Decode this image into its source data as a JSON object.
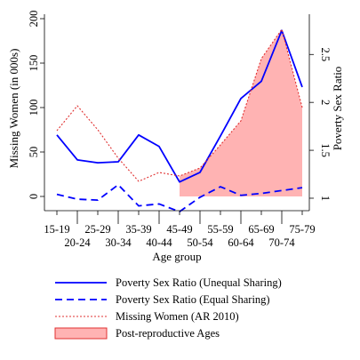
{
  "chart_data": {
    "type": "line",
    "xlabel": "Age group",
    "ylabel_left": "Missing Women (in 000s)",
    "ylabel_right": "Poverty Sex Ratio",
    "categories": [
      "15-19",
      "20-24",
      "25-29",
      "30-34",
      "35-39",
      "40-44",
      "45-49",
      "50-54",
      "55-59",
      "60-64",
      "65-69",
      "70-74",
      "75-79"
    ],
    "ylim_left": [
      -16,
      205
    ],
    "ylim_right": [
      0.87,
      2.92
    ],
    "yticks_left": [
      "0",
      "50",
      "100",
      "150",
      "200"
    ],
    "yticks_right": [
      "1",
      "1.5",
      "2",
      "2.5"
    ],
    "grid": false,
    "legend_position": "bottom",
    "shaded_region": {
      "label": "Post-reproductive Ages",
      "from": "45-49",
      "to": "75-79",
      "color": "#ffb3b3",
      "edge_color": "#e03030"
    },
    "series": [
      {
        "name": "Poverty Sex Ratio (Unequal Sharing)",
        "axis": "right",
        "style": "solid",
        "color": "#0000ff",
        "values": [
          1.66,
          1.4,
          1.37,
          1.38,
          1.66,
          1.54,
          1.17,
          1.27,
          1.65,
          2.04,
          2.22,
          2.75,
          2.16
        ]
      },
      {
        "name": "Poverty Sex Ratio (Equal Sharing)",
        "axis": "right",
        "style": "dashed",
        "color": "#0000ff",
        "values": [
          1.04,
          0.99,
          0.98,
          1.14,
          0.92,
          0.94,
          0.86,
          1.01,
          1.12,
          1.03,
          1.05,
          1.08,
          1.11
        ]
      },
      {
        "name": "Missing Women (AR 2010)",
        "axis": "left",
        "style": "dotted",
        "color": "#e03030",
        "values": [
          74,
          102,
          75,
          43,
          17,
          27,
          23,
          32,
          58,
          85,
          155,
          188,
          100
        ]
      }
    ]
  }
}
